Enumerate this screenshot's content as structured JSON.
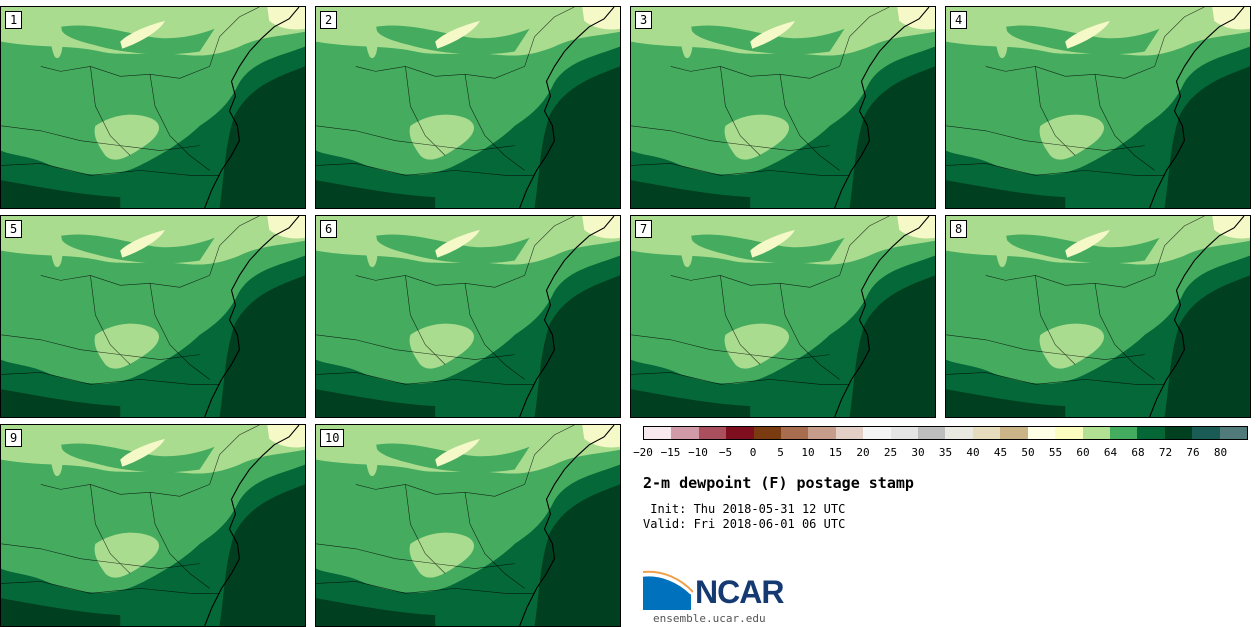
{
  "panels": [
    {
      "label": "1"
    },
    {
      "label": "2"
    },
    {
      "label": "3"
    },
    {
      "label": "4"
    },
    {
      "label": "5"
    },
    {
      "label": "6"
    },
    {
      "label": "7"
    },
    {
      "label": "8"
    },
    {
      "label": "9"
    },
    {
      "label": "10"
    }
  ],
  "colorbar": {
    "colors": [
      "#f7e9ee",
      "#d19aa8",
      "#a94f5d",
      "#7f0f1e",
      "#7b3b10",
      "#a86c4e",
      "#c59d8a",
      "#e3cfc5",
      "#f4f4f4",
      "#e4e4e4",
      "#bdbdbd",
      "#e9e9e2",
      "#e6dbbc",
      "#cbb588",
      "#fefee6",
      "#fafdbf",
      "#b1e093",
      "#44ac5e",
      "#056736",
      "#00401e",
      "#1a5b56",
      "#517a7b"
    ],
    "tick_labels": [
      "−20",
      "−15",
      "−10",
      "−5",
      "0",
      "5",
      "10",
      "15",
      "20",
      "25",
      "30",
      "35",
      "40",
      "45",
      "50",
      "55",
      "60",
      "64",
      "68",
      "72",
      "76",
      "80"
    ]
  },
  "title": "2-m dewpoint (F) postage stamp",
  "init": " Init: Thu 2018-05-31 12 UTC",
  "valid": "Valid: Fri 2018-06-01 06 UTC",
  "logo": {
    "text": "NCAR",
    "colors": {
      "blue": "#0071bc",
      "navy": "#153a72",
      "orange": "#f0a04b"
    }
  },
  "site": "ensemble.ucar.edu",
  "map_colors": {
    "c80": "#f5f8c7",
    "c64": "#a9dc8f",
    "c68": "#45ab5f",
    "c72": "#056838",
    "c76": "#003f1f"
  }
}
